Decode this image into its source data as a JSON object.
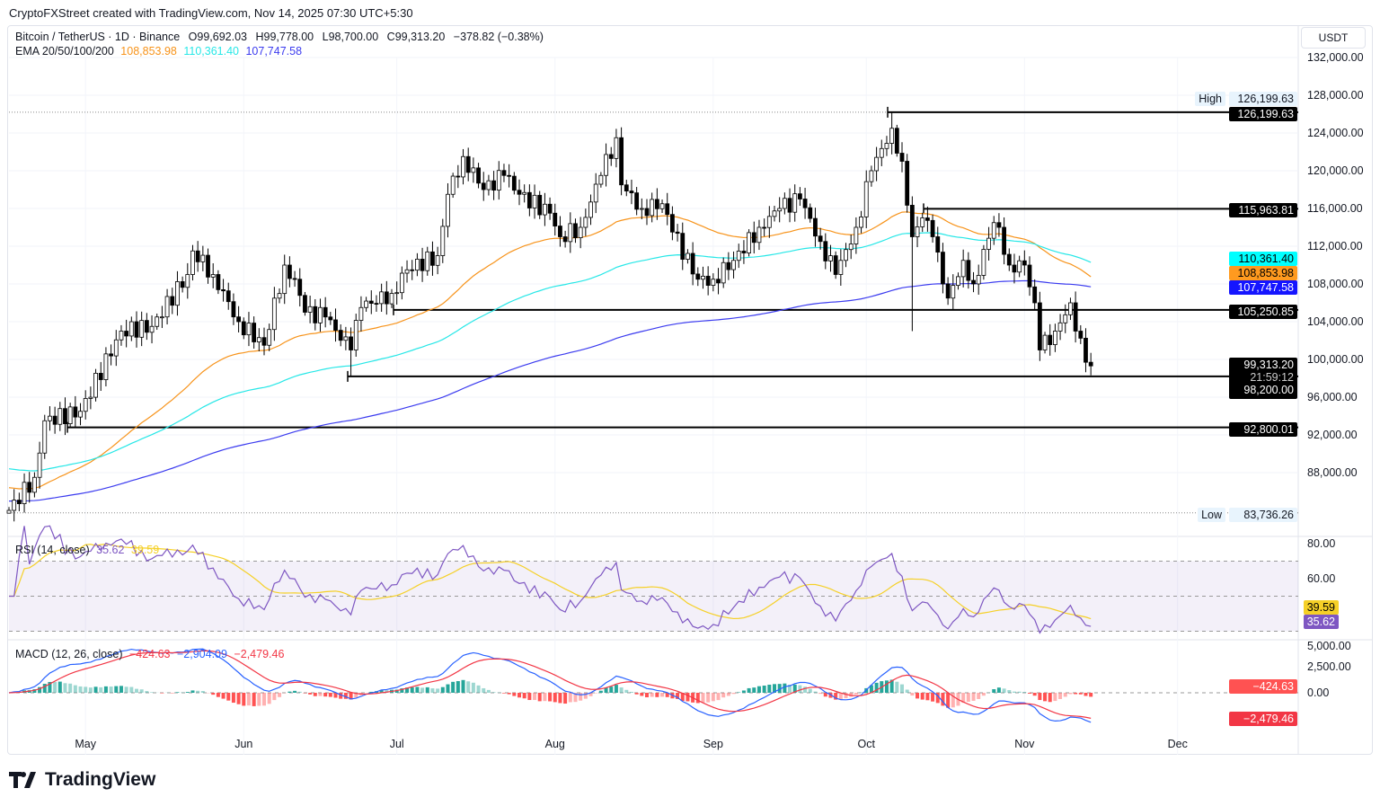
{
  "credit": "CryptoFXStreet created with TradingView.com, Nov 14, 2025 07:30 UTC+5:30",
  "header": {
    "symbol": "Bitcoin / TetherUS · 1D · Binance",
    "open": "O99,692.03",
    "high": "H99,778.00",
    "low": "L98,700.00",
    "close": "C99,313.20",
    "change": "−378.82 (−0.38%)",
    "ema_label": "EMA 20/50/100/200",
    "ema_values": [
      "108,853.98",
      "110,361.40",
      "107,747.58"
    ]
  },
  "currency": "USDT",
  "colors": {
    "up": "#ffffff",
    "down": "#000000",
    "ema_orange": "#f7931a",
    "ema_cyan": "#26e7e7",
    "ema_blue": "#3b3bef",
    "rsi": "#7e57c2",
    "rsi_ma": "#f5d027",
    "macd": "#2962ff",
    "signal": "#f23645",
    "hist_up": "#26a69a",
    "hist_down": "#ff5252"
  },
  "chart_data": [
    {
      "type": "candlestick",
      "title": "Bitcoin / TetherUS · 1D · Binance",
      "ylim": [
        82000,
        133500
      ],
      "y_ticks": [
        "132,000.00",
        "128,000.00",
        "124,000.00",
        "120,000.00",
        "116,000.00",
        "112,000.00",
        "108,000.00",
        "104,000.00",
        "100,000.00",
        "96,000.00",
        "92,000.00",
        "88,000.00"
      ],
      "x_ticks": [
        "May",
        "Jun",
        "Jul",
        "Aug",
        "Sep",
        "Oct",
        "Nov",
        "Dec"
      ],
      "price_path_approx": [
        [
          "2025-04-16",
          84000
        ],
        [
          "2025-04-21",
          87500
        ],
        [
          "2025-04-23",
          93500
        ],
        [
          "2025-04-30",
          94500
        ],
        [
          "2025-05-08",
          103000
        ],
        [
          "2025-05-14",
          103500
        ],
        [
          "2025-05-21",
          109000
        ],
        [
          "2025-05-22",
          111500
        ],
        [
          "2025-05-26",
          109000
        ],
        [
          "2025-05-31",
          104000
        ],
        [
          "2025-06-05",
          101500
        ],
        [
          "2025-06-09",
          110000
        ],
        [
          "2025-06-11",
          108500
        ],
        [
          "2025-06-13",
          105000
        ],
        [
          "2025-06-17",
          104500
        ],
        [
          "2025-06-22",
          101000
        ],
        [
          "2025-06-24",
          105500
        ],
        [
          "2025-06-30",
          107000
        ],
        [
          "2025-07-03",
          109500
        ],
        [
          "2025-07-09",
          111000
        ],
        [
          "2025-07-11",
          117500
        ],
        [
          "2025-07-14",
          121500
        ],
        [
          "2025-07-18",
          118000
        ],
        [
          "2025-07-22",
          119500
        ],
        [
          "2025-07-25",
          117500
        ],
        [
          "2025-07-31",
          115500
        ],
        [
          "2025-08-02",
          113000
        ],
        [
          "2025-08-06",
          114000
        ],
        [
          "2025-08-10",
          119500
        ],
        [
          "2025-08-13",
          123500
        ],
        [
          "2025-08-14",
          118500
        ],
        [
          "2025-08-18",
          116000
        ],
        [
          "2025-08-22",
          116500
        ],
        [
          "2025-08-24",
          113500
        ],
        [
          "2025-08-29",
          108500
        ],
        [
          "2025-09-01",
          108500
        ],
        [
          "2025-09-05",
          110500
        ],
        [
          "2025-09-10",
          114000
        ],
        [
          "2025-09-14",
          116000
        ],
        [
          "2025-09-18",
          117000
        ],
        [
          "2025-09-22",
          112500
        ],
        [
          "2025-09-25",
          109000
        ],
        [
          "2025-09-29",
          114000
        ],
        [
          "2025-10-02",
          120000
        ],
        [
          "2025-10-06",
          124500
        ],
        [
          "2025-10-08",
          121000
        ],
        [
          "2025-10-10",
          113000
        ],
        [
          "2025-10-12",
          115000
        ],
        [
          "2025-10-14",
          113000
        ],
        [
          "2025-10-16",
          108000
        ],
        [
          "2025-10-17",
          106500
        ],
        [
          "2025-10-20",
          110500
        ],
        [
          "2025-10-22",
          108000
        ],
        [
          "2025-10-26",
          114500
        ],
        [
          "2025-10-27",
          114000
        ],
        [
          "2025-10-29",
          110000
        ],
        [
          "2025-11-01",
          110000
        ],
        [
          "2025-11-03",
          106000
        ],
        [
          "2025-11-04",
          101000
        ],
        [
          "2025-11-07",
          103000
        ],
        [
          "2025-11-10",
          106000
        ],
        [
          "2025-11-11",
          103000
        ],
        [
          "2025-11-13",
          99700
        ],
        [
          "2025-11-14",
          99313.2
        ]
      ],
      "ema": [
        {
          "period": 50,
          "value": 108853.98,
          "color": "orange"
        },
        {
          "period": 100,
          "value": 110361.4,
          "color": "cyan"
        },
        {
          "period": 200,
          "value": 107747.58,
          "color": "blue"
        }
      ],
      "horizontal_levels": [
        "126,199.63",
        "115,963.81",
        "105,250.85",
        "98,200.00",
        "92,800.01"
      ],
      "high_label": "High",
      "high_value": "126,199.63",
      "low_label": "Low",
      "low_value": "83,736.26",
      "last_price": "99,313.20",
      "countdown": "21:59:12",
      "ema_tags": [
        "110,361.40",
        "108,853.98",
        "107,747.58"
      ]
    },
    {
      "type": "line",
      "title": "RSI (14, close)",
      "values": [
        "35.62",
        "39.59"
      ],
      "y_ticks": [
        "80.00",
        "60.00"
      ],
      "bands": [
        70,
        50,
        30
      ],
      "ylim": [
        20,
        85
      ]
    },
    {
      "type": "bar+line",
      "title": "MACD (12, 26, close)",
      "values": [
        "−424.63",
        "−2,904.09",
        "−2,479.46"
      ],
      "y_ticks": [
        "5,000.00",
        "2,500.00",
        "0.00"
      ],
      "tags": [
        "−424.63",
        "−2,479.46"
      ]
    }
  ],
  "footer": {
    "logo_text": "TradingView"
  }
}
